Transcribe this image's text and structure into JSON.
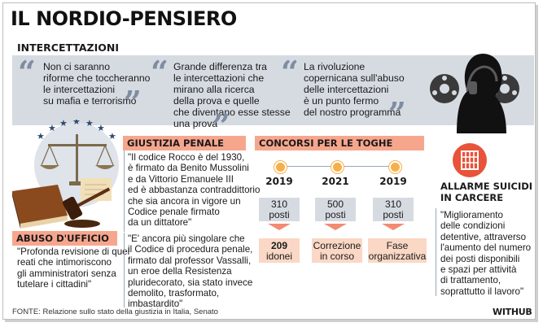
{
  "title": "IL NORDIO-PENSIERO",
  "intercettazioni": {
    "heading": "INTERCETTAZIONI",
    "quotes": [
      [
        "Non ci saranno",
        "riforme che toccheranno",
        "le intercettazioni",
        "su mafia e terrorismo"
      ],
      [
        "Grande differenza tra",
        "le intercettazioni che",
        "mirano alla ricerca",
        "della prova e quelle",
        "che diventano esse stesse",
        "una prova"
      ],
      [
        "La rivoluzione",
        "copernicana sull'abuso",
        "delle intercettazioni",
        "è un punto fermo",
        "del nostro programma"
      ]
    ]
  },
  "giustizia_penale": {
    "heading": "GIUSTIZIA PENALE",
    "lines_1": [
      "\"Il codice Rocco è del 1930,",
      "è firmato da Benito Mussolini",
      "e da Vittorio Emanuele III",
      "ed è abbastanza contraddittorio",
      "che sia ancora in vigore un",
      "Codice penale firmato",
      "da un dittatore\""
    ],
    "lines_2": [
      "\"E' ancora più singolare che",
      "il Codice di procedura penale,",
      "firmato dal professor Vassalli,",
      "un eroe della Resistenza",
      "pluridecorato, sia stato invece",
      "demolito, trasformato,",
      "imbastardito\""
    ]
  },
  "abuso_ufficio": {
    "heading": "ABUSO D'UFFICIO",
    "lines": [
      "\"Profonda revisione di quei",
      "reati che intimoriscono",
      "gli amministratori senza",
      "tutelare i cittadini\""
    ]
  },
  "concorsi": {
    "heading": "CONCORSI PER LE TOGHE",
    "columns": [
      {
        "year": "2019",
        "posts_value": "310",
        "posts_label": "posti",
        "outcome": [
          "209",
          "idonei"
        ]
      },
      {
        "year": "2021",
        "posts_value": "500",
        "posts_label": "posti",
        "outcome": [
          "Correzione",
          "in corso"
        ]
      },
      {
        "year": "2019",
        "posts_value": "310",
        "posts_label": "posti",
        "outcome": [
          "Fase",
          "organizzativa"
        ]
      }
    ]
  },
  "allarme": {
    "heading": [
      "ALLARME SUICIDI",
      "IN CARCERE"
    ],
    "lines": [
      "\"Miglioramento",
      "delle condizioni",
      "detentive, attraverso",
      "l'aumento del numero",
      "dei posti disponibili",
      "e spazi per attività",
      "di trattamento,",
      "soprattutto il lavoro\""
    ]
  },
  "footer": {
    "source": "FONTE: Relazione sullo stato della giustizia in Italia, Senato",
    "brand": "WITHUB"
  },
  "colors": {
    "band": "#d6dbe2",
    "salmon": "#f7a68e",
    "peach": "#fad8c5",
    "orange_dot": "#f6b04b",
    "quote_mark": "#7e8da2",
    "red_badge": "#e8533a"
  },
  "icons": [
    "quote-open-icon",
    "quote-close-icon",
    "justice-scale-icon",
    "eu-stars-icon",
    "gavel-icon",
    "law-book-icon",
    "scroll-icon",
    "prison-window-icon",
    "wiretap-silhouette-icon"
  ]
}
